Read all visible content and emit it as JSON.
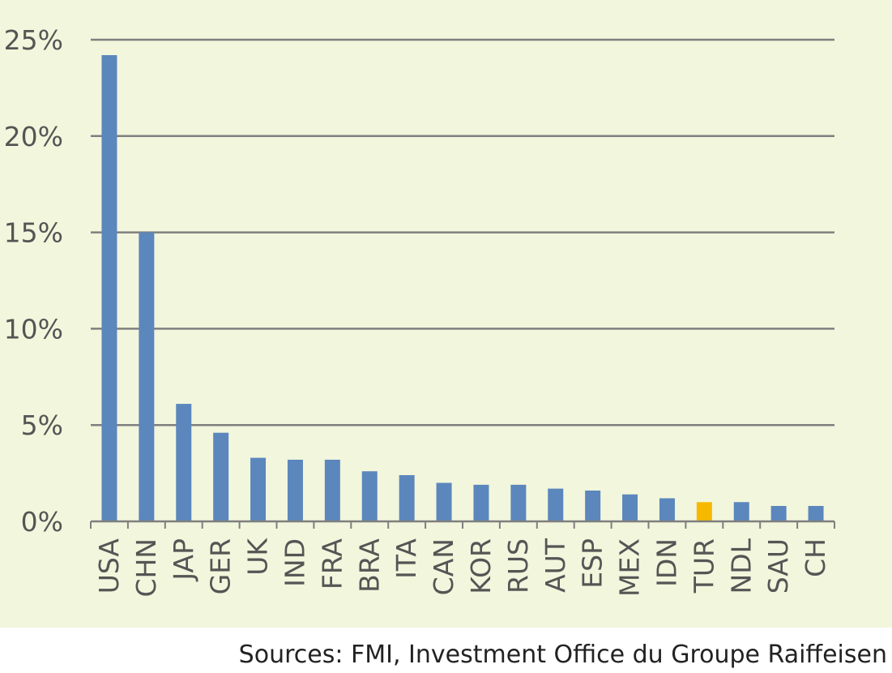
{
  "chart_data": {
    "type": "bar",
    "title": "",
    "xlabel": "",
    "ylabel": "",
    "ylim": [
      0,
      25
    ],
    "y_ticks": [
      0,
      5,
      10,
      15,
      20,
      25
    ],
    "y_tick_labels": [
      "0%",
      "5%",
      "10%",
      "15%",
      "20%",
      "25%"
    ],
    "categories": [
      "USA",
      "CHN",
      "JAP",
      "GER",
      "UK",
      "IND",
      "FRA",
      "BRA",
      "ITA",
      "CAN",
      "KOR",
      "RUS",
      "AUT",
      "ESP",
      "MEX",
      "IDN",
      "TUR",
      "NDL",
      "SAU",
      "CH"
    ],
    "values": [
      24.2,
      15.0,
      6.1,
      4.6,
      3.3,
      3.2,
      3.2,
      2.6,
      2.4,
      2.0,
      1.9,
      1.9,
      1.7,
      1.6,
      1.4,
      1.2,
      1.0,
      1.0,
      0.8,
      0.8
    ],
    "highlight_category": "TUR",
    "grid": true,
    "colors": {
      "bar": "#5b87bd",
      "highlight": "#f7b900",
      "grid": "#7f7f7f",
      "background": "#f2f6dc"
    }
  },
  "source": "Sources: FMI, Investment Office du Groupe Raiffeisen"
}
